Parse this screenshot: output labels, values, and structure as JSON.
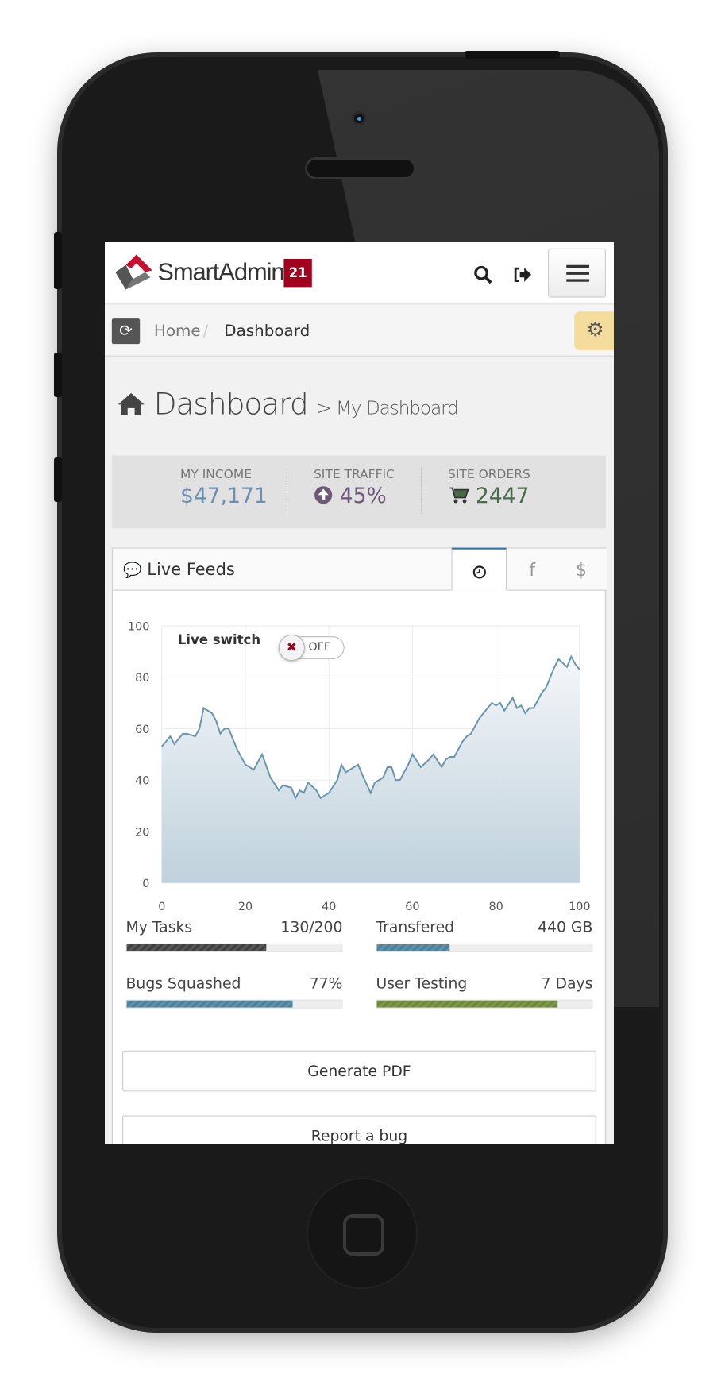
{
  "header": {
    "brand": "SmartAdmin",
    "badge": "21",
    "icons": [
      "search-icon",
      "logout-icon",
      "hamburger-menu-icon"
    ]
  },
  "breadcrumb": {
    "items": [
      "Home",
      "Dashboard"
    ],
    "separator": "/"
  },
  "page": {
    "title": "Dashboard",
    "subtitle": "> My Dashboard"
  },
  "stats": [
    {
      "label": "MY INCOME",
      "value": "$47,171",
      "color": "#6b8fb0"
    },
    {
      "label": "SITE TRAFFIC",
      "value": "45%",
      "icon": "arrow-circle-up-icon",
      "color": "#6e587a"
    },
    {
      "label": "SITE ORDERS",
      "value": "2447",
      "icon": "cart-icon",
      "color": "#496949"
    }
  ],
  "widget": {
    "title": "Live Feeds",
    "tabs": [
      {
        "icon": "clock-icon",
        "active": true
      },
      {
        "icon": "facebook-icon",
        "label": "f"
      },
      {
        "icon": "dollar-icon",
        "label": "$"
      }
    ],
    "switch": {
      "label": "Live switch",
      "state": "OFF"
    }
  },
  "chart_data": {
    "type": "area",
    "xlim": [
      0,
      100
    ],
    "ylim": [
      0,
      100
    ],
    "xticks": [
      "0",
      "20",
      "40",
      "60",
      "80",
      "100"
    ],
    "yticks": [
      "0",
      "20",
      "40",
      "60",
      "80",
      "100"
    ],
    "grid": true,
    "color": "#6a96ad",
    "x": [
      0,
      2,
      3,
      5,
      6,
      8,
      9,
      10,
      12,
      13,
      14,
      15,
      16,
      18,
      20,
      22,
      24,
      26,
      28,
      29,
      31,
      32,
      33,
      34,
      35,
      37,
      38,
      40,
      42,
      43,
      44,
      46,
      47,
      48,
      50,
      51,
      53,
      54,
      55,
      56,
      57,
      59,
      60,
      62,
      64,
      65,
      67,
      68,
      69,
      70,
      72,
      73,
      74,
      76,
      77,
      79,
      80,
      81,
      82,
      84,
      85,
      86,
      87,
      88,
      89,
      90,
      91,
      92,
      94,
      95,
      97,
      98,
      99,
      100
    ],
    "y": [
      53,
      57,
      54,
      58,
      58,
      57,
      60,
      68,
      66,
      63,
      58,
      60,
      60,
      52,
      46,
      44,
      50,
      41,
      36,
      38,
      37,
      33,
      36,
      35,
      39,
      36,
      33,
      35,
      40,
      46,
      43,
      45,
      46,
      42,
      35,
      39,
      41,
      45,
      45,
      40,
      40,
      46,
      50,
      45,
      48,
      50,
      45,
      48,
      49,
      49,
      55,
      57,
      58,
      64,
      66,
      70,
      69,
      70,
      67,
      72,
      68,
      69,
      66,
      68,
      68,
      71,
      74,
      76,
      84,
      87,
      84,
      88,
      85,
      83
    ]
  },
  "progress": [
    {
      "label": "My Tasks",
      "value": "130/200",
      "percent": 65,
      "color": "#404040"
    },
    {
      "label": "Transfered",
      "value": "440 GB",
      "percent": 34,
      "color": "#4b819d"
    },
    {
      "label": "Bugs Squashed",
      "value": "77%",
      "percent": 77,
      "color": "#4b819d"
    },
    {
      "label": "User Testing",
      "value": "7 Days",
      "percent": 84,
      "color": "#6a8a36"
    }
  ],
  "actions": [
    "Generate PDF",
    "Report a bug"
  ]
}
